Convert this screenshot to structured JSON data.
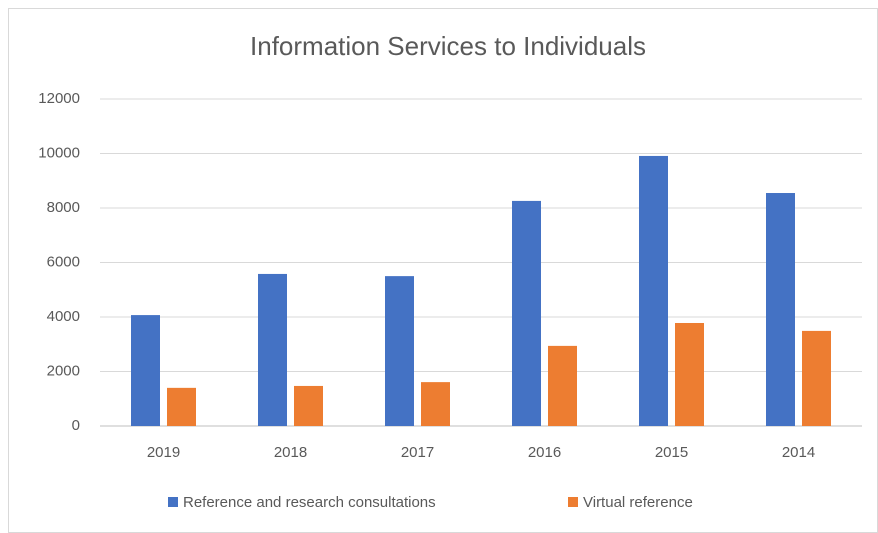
{
  "chart_data": {
    "type": "bar",
    "title": "Information Services to Individuals",
    "categories": [
      "2019",
      "2018",
      "2017",
      "2016",
      "2015",
      "2014"
    ],
    "series": [
      {
        "name": "Reference and research consultations",
        "color": "#4472c4",
        "values": [
          4070,
          5580,
          5500,
          8260,
          9910,
          8550
        ]
      },
      {
        "name": "Virtual reference",
        "color": "#ed7d31",
        "values": [
          1400,
          1470,
          1610,
          2940,
          3780,
          3490
        ]
      }
    ],
    "ylim": [
      0,
      12000
    ],
    "yticks": [
      0,
      2000,
      4000,
      6000,
      8000,
      10000,
      12000
    ],
    "grid": true,
    "legend": "bottom"
  }
}
